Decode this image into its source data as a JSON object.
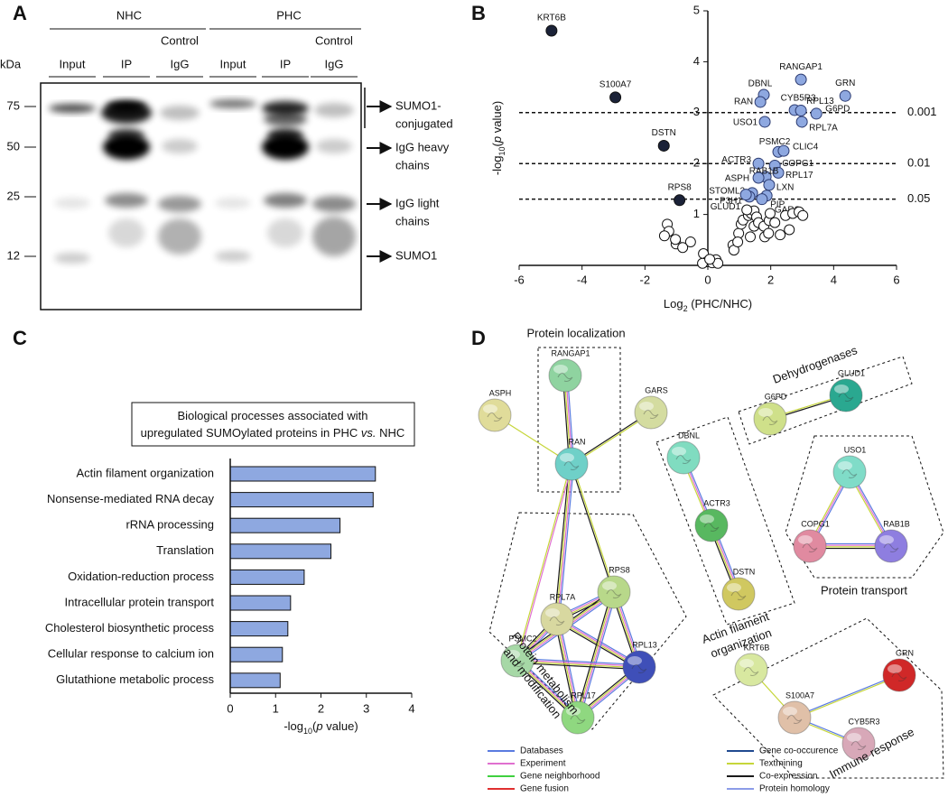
{
  "panels": [
    "A",
    "B",
    "C",
    "D"
  ],
  "blot": {
    "groups": [
      "NHC",
      "PHC"
    ],
    "lanes": [
      [
        "Input"
      ],
      [
        "IP"
      ],
      [
        "Control",
        "IgG"
      ],
      [
        "Input"
      ],
      [
        "IP"
      ],
      [
        "Control",
        "IgG"
      ]
    ],
    "unit": "kDa",
    "markers": [
      75,
      50,
      25,
      12
    ],
    "annotations": [
      [
        "SUMO1-",
        "conjugated"
      ],
      [
        "IgG heavy",
        "chains"
      ],
      [
        "IgG light",
        "chains"
      ],
      [
        "SUMO1"
      ]
    ]
  },
  "chart_data": [
    {
      "type": "scatter",
      "xlabel": [
        "Log",
        "2",
        " (PHC/NHC)"
      ],
      "ylabel": [
        "-log",
        "10",
        "(",
        "p",
        " value)"
      ],
      "xlim": [
        -6,
        6
      ],
      "ylim": [
        0,
        5
      ],
      "xticks": [
        -6,
        -4,
        -2,
        0,
        2,
        4,
        6
      ],
      "yticks": [
        1,
        2,
        3,
        4,
        5
      ],
      "thresholds": [
        {
          "value": 3,
          "label": "0.001"
        },
        {
          "value": 2,
          "label": "0.01"
        },
        {
          "value": 1.301,
          "label": "0.05"
        }
      ],
      "series": [
        {
          "color": "#1b2238",
          "labels": [
            "KRT6B",
            "S100A7",
            "DSTN",
            "RPS8"
          ],
          "x": [
            -4.97,
            -2.94,
            -1.4,
            -0.9
          ],
          "y": [
            4.61,
            3.3,
            2.35,
            1.28
          ]
        },
        {
          "color": "#8ea8e0",
          "labels": [
            "RANGAP1",
            "GRN",
            "DBNL",
            "RAN",
            "CYB5R3",
            "RPL13",
            "G6PD",
            "RPL7A",
            "USO1",
            "PSMC2",
            "CLIC4",
            "ACTR3",
            "COPG1",
            "RPL17",
            "RAB1B",
            "ASPH",
            "LXN",
            "STOML2",
            "PIP",
            "P3H1",
            "GLUD1",
            "GARS"
          ],
          "x": [
            2.96,
            4.37,
            1.78,
            1.67,
            2.76,
            2.96,
            3.45,
            2.99,
            1.81,
            2.24,
            2.41,
            1.61,
            2.13,
            2.24,
            1.84,
            1.61,
            1.95,
            1.41,
            1.87,
            1.32,
            1.21,
            1.72
          ],
          "y": [
            3.65,
            3.33,
            3.35,
            3.21,
            3.05,
            3.04,
            2.98,
            2.82,
            2.82,
            2.23,
            2.25,
            2.0,
            1.96,
            1.82,
            1.74,
            1.72,
            1.58,
            1.42,
            1.37,
            1.35,
            1.39,
            1.3
          ]
        },
        {
          "color": "#ffffff",
          "x": [
            -1.29,
            -1.24,
            -1.38,
            -1.01,
            -1.03,
            -0.55,
            -0.8,
            -0.14,
            -0.03,
            0.14,
            0.26,
            0.32,
            -0.17,
            0.06,
            0.8,
            0.83,
            0.98,
            1.06,
            1.12,
            1.29,
            1.38,
            1.47,
            1.55,
            1.24,
            1.47,
            1.61,
            1.78,
            1.95,
            1.98,
            2.13,
            2.47,
            2.7,
            2.9,
            3.02,
            2.59,
            0.95,
            1.35,
            1.81,
            2.3,
            1.93
          ],
          "y": [
            0.81,
            0.67,
            0.58,
            0.42,
            0.51,
            0.46,
            0.35,
            0.23,
            0.07,
            0.05,
            0.11,
            0.04,
            0.04,
            0.12,
            0.4,
            0.3,
            0.63,
            0.81,
            0.89,
            0.98,
            1.02,
            1.07,
            0.95,
            1.09,
            0.77,
            0.84,
            0.77,
            0.88,
            1.02,
            0.84,
            0.98,
            1.02,
            1.05,
            0.98,
            0.7,
            0.46,
            0.56,
            0.56,
            0.6,
            0.63
          ]
        }
      ]
    },
    {
      "type": "bar",
      "orientation": "horizontal",
      "title": [
        [
          "Biological processes associated with"
        ],
        [
          "upregulated SUMOylated proteins in PHC ",
          "vs.",
          " NHC"
        ]
      ],
      "categories": [
        "Actin filament organization",
        "Nonsense-mediated RNA decay",
        "rRNA processing",
        "Translation",
        "Oxidation-reduction process",
        "Intracellular protein transport",
        "Cholesterol biosynthetic process",
        "Cellular response to calcium ion",
        "Glutathione metabolic process"
      ],
      "values": [
        3.2,
        3.15,
        2.42,
        2.22,
        1.63,
        1.33,
        1.27,
        1.15,
        1.1
      ],
      "color": "#8ea8e0",
      "xlim": [
        0,
        4
      ],
      "xticks": [
        0,
        1,
        2,
        3,
        4
      ],
      "xlabel": [
        "-log",
        "10",
        "(",
        "p",
        " value)"
      ]
    }
  ],
  "network": {
    "nodes": [
      {
        "label": "RANGAP1",
        "color": "#8fd3a0"
      },
      {
        "label": "ASPH",
        "color": "#e0dc9a"
      },
      {
        "label": "GARS",
        "color": "#d4dca0"
      },
      {
        "label": "RAN",
        "color": "#6fd0c8"
      },
      {
        "label": "RPL7A",
        "color": "#d8d8a0"
      },
      {
        "label": "RPS8",
        "color": "#b8d88a"
      },
      {
        "label": "PSMC2",
        "color": "#a6d8a6"
      },
      {
        "label": "RPL13",
        "color": "#3f4fb8"
      },
      {
        "label": "RPL17",
        "color": "#8fd880"
      },
      {
        "label": "DBNL",
        "color": "#80dcc0"
      },
      {
        "label": "ACTR3",
        "color": "#58b860"
      },
      {
        "label": "DSTN",
        "color": "#d0c860"
      },
      {
        "label": "G6PD",
        "color": "#cfe08a"
      },
      {
        "label": "GLUD1",
        "color": "#2aa890"
      },
      {
        "label": "USO1",
        "color": "#80dcc8"
      },
      {
        "label": "COPG1",
        "color": "#e08aa0"
      },
      {
        "label": "RAB1B",
        "color": "#8e7ee0"
      },
      {
        "label": "KRT6B",
        "color": "#d8e8a0"
      },
      {
        "label": "GRN",
        "color": "#d02828"
      },
      {
        "label": "S100A7",
        "color": "#e0c0a8"
      },
      {
        "label": "CYB5R3",
        "color": "#d8a8b8"
      }
    ],
    "groups": [
      [
        "Protein localization"
      ],
      [
        "Dehydrogenases"
      ],
      [
        "Actin filament",
        "organization"
      ],
      [
        "Protein transport"
      ],
      [
        "Protein metabolism",
        "and modification"
      ],
      [
        "Immune response"
      ]
    ],
    "legend": [
      {
        "label": "Databases",
        "color": "#5a7be0"
      },
      {
        "label": "Experiment",
        "color": "#e070d0"
      },
      {
        "label": "Gene neighborhood",
        "color": "#40d040"
      },
      {
        "label": "Gene fusion",
        "color": "#e03030"
      },
      {
        "label": "Gene co-occurence",
        "color": "#204a90"
      },
      {
        "label": "Textmining",
        "color": "#c6d63a"
      },
      {
        "label": "Co-expression",
        "color": "#1a1a1a"
      },
      {
        "label": "Protein homology",
        "color": "#8c9ce8"
      }
    ]
  }
}
